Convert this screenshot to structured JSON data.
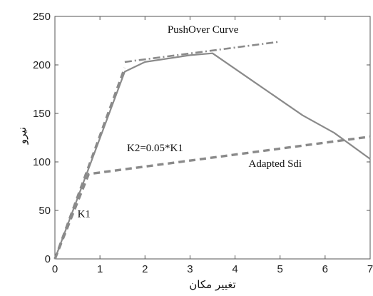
{
  "chart_data": {
    "type": "line",
    "xlabel": "تغییر مکان",
    "ylabel": "نیرو",
    "xlim": [
      0,
      7
    ],
    "ylim": [
      0,
      250
    ],
    "x_ticks": [
      "0",
      "1",
      "2",
      "3",
      "4",
      "5",
      "6",
      "7"
    ],
    "y_ticks": [
      "0",
      "50",
      "100",
      "150",
      "200",
      "250"
    ],
    "grid": false,
    "series": [
      {
        "style": "solid",
        "color": "#8a8a8a",
        "points": [
          [
            0,
            0
          ],
          [
            1.55,
            193
          ],
          [
            2.0,
            203
          ],
          [
            3.0,
            210
          ],
          [
            3.5,
            212
          ],
          [
            4.5,
            180
          ],
          [
            5.5,
            148
          ],
          [
            6.2,
            130
          ],
          [
            7.0,
            103
          ]
        ]
      },
      {
        "style": "dash-dot",
        "color": "#8a8a8a",
        "points": [
          [
            1.55,
            203
          ],
          [
            5.0,
            224
          ]
        ]
      },
      {
        "style": "dashed",
        "color": "#8a8a8a",
        "points": [
          [
            0,
            0
          ],
          [
            0.75,
            87.5
          ],
          [
            7.0,
            126
          ]
        ]
      },
      {
        "style": "dashed",
        "color": "#8a8a8a",
        "points": [
          [
            0,
            0
          ],
          [
            1.55,
            197
          ]
        ]
      }
    ],
    "annotations": [
      {
        "text": "PushOver Curve",
        "x": 2.5,
        "y": 233
      },
      {
        "text": "K2=0.05*K1",
        "x": 1.6,
        "y": 111
      },
      {
        "text": "Adapted Sdi",
        "x": 4.3,
        "y": 95
      },
      {
        "text": "K1",
        "x": 0.5,
        "y": 43
      }
    ]
  }
}
